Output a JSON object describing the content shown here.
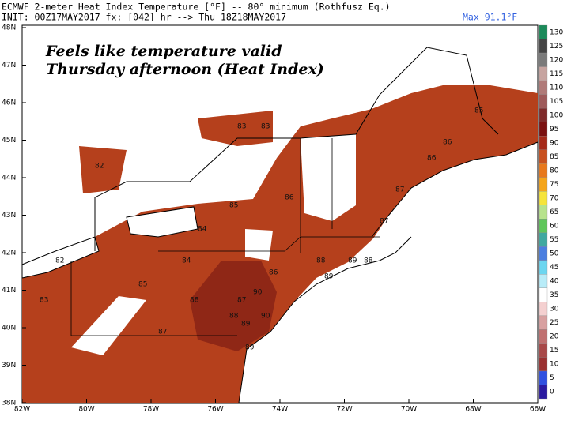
{
  "header": {
    "title": "ECMWF 2-meter Heat Index Temperature [°F] -- 80° minimum (Rothfusz Eq.)",
    "init": "INIT: 00Z17MAY2017 fx: [042] hr --> Thu 18Z18MAY2017",
    "max": "Max 91.1°F"
  },
  "overlay": {
    "line1": "Feels like temperature valid",
    "line2": "Thursday afternoon (Heat Index)"
  },
  "lat_labels": [
    "48N",
    "47N",
    "46N",
    "45N",
    "44N",
    "43N",
    "42N",
    "41N",
    "40N",
    "39N",
    "38N"
  ],
  "lon_labels": [
    "82W",
    "80W",
    "78W",
    "76W",
    "74W",
    "72W",
    "70W",
    "68W",
    "66W"
  ],
  "colorbar": {
    "labels": [
      "130",
      "125",
      "120",
      "115",
      "110",
      "105",
      "100",
      "95",
      "90",
      "85",
      "80",
      "75",
      "70",
      "65",
      "60",
      "55",
      "50",
      "45",
      "40",
      "35",
      "30",
      "25",
      "20",
      "15",
      "10",
      "5",
      "0"
    ],
    "colors": [
      "#1b8a5a",
      "#444444",
      "#7a7a7a",
      "#c7a4a0",
      "#b07a78",
      "#9e5a5a",
      "#7e2a2a",
      "#7a1010",
      "#a52a1a",
      "#c8501e",
      "#e8781c",
      "#f5a51a",
      "#f6e43a",
      "#b7e38c",
      "#5ec65a",
      "#3fa8a0",
      "#4a7ee0",
      "#6cd6f0",
      "#b8ecf8",
      "#ffffff",
      "#f4d0d0",
      "#d8a0a0",
      "#c07070",
      "#a84848",
      "#9a3030",
      "#3050e0",
      "#2a1aa0"
    ]
  },
  "map_values": [
    "82",
    "83",
    "83",
    "85",
    "84",
    "86",
    "86",
    "87",
    "88",
    "89",
    "88",
    "87",
    "89",
    "90",
    "89",
    "88",
    "87",
    "86",
    "85",
    "83",
    "82",
    "86",
    "87",
    "88",
    "89",
    "90",
    "85",
    "84"
  ]
}
